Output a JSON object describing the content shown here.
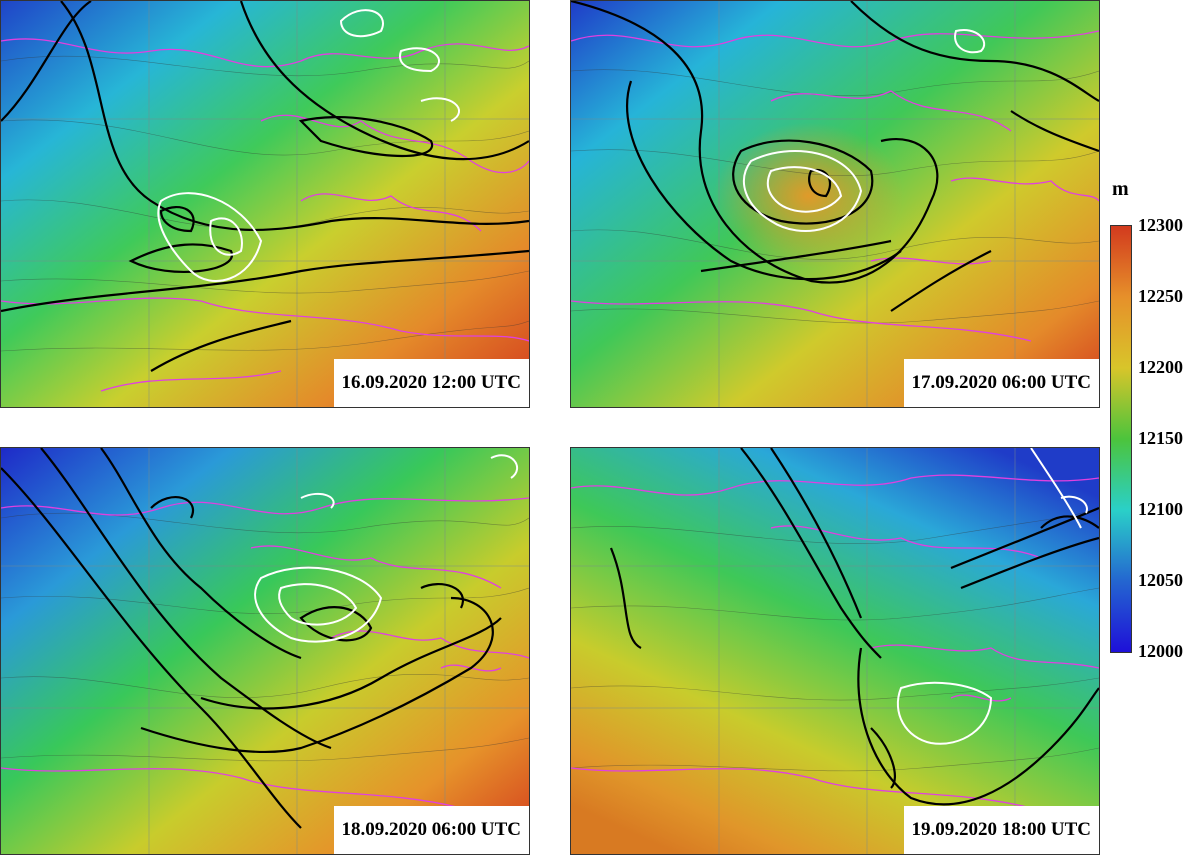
{
  "panels": [
    {
      "id": "p1",
      "timestamp": "16.09.2020 12:00 UTC",
      "gradient_angle": 1
    },
    {
      "id": "p2",
      "timestamp": "17.09.2020 06:00 UTC",
      "gradient_angle": 2
    },
    {
      "id": "p3",
      "timestamp": "18.09.2020 06:00 UTC",
      "gradient_angle": 3
    },
    {
      "id": "p4",
      "timestamp": "19.09.2020 18:00 UTC",
      "gradient_angle": 4
    }
  ],
  "colorbar": {
    "unit": "m",
    "ticks": [
      "12300",
      "12250",
      "12200",
      "12150",
      "12100",
      "12050",
      "12000"
    ],
    "min": 12000,
    "max": 12300,
    "colors": [
      "#d23a1e",
      "#e6902a",
      "#d8c52a",
      "#4cc43c",
      "#2ad0c8",
      "#2466d0",
      "#1e10d8"
    ]
  },
  "colors": {
    "height_contours": "#333333",
    "coastlines": "#e040e0",
    "pv_contours": "#000000",
    "ascent_contours": "#ffffff"
  }
}
